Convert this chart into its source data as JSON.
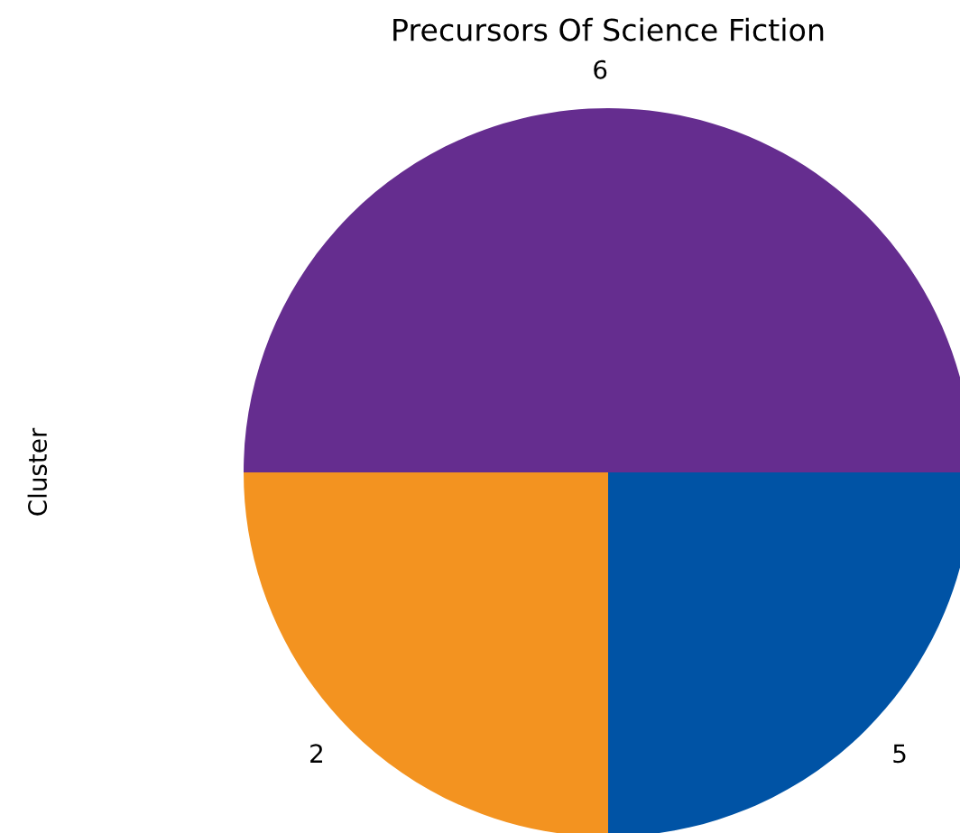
{
  "chart_data": {
    "type": "pie",
    "title": "Precursors Of Science Fiction",
    "ylabel": "Cluster",
    "categories": [
      "6",
      "2",
      "5"
    ],
    "values": [
      50,
      25,
      25
    ],
    "colors": [
      "#652d8f",
      "#f39320",
      "#0053a5"
    ],
    "legend": false
  }
}
